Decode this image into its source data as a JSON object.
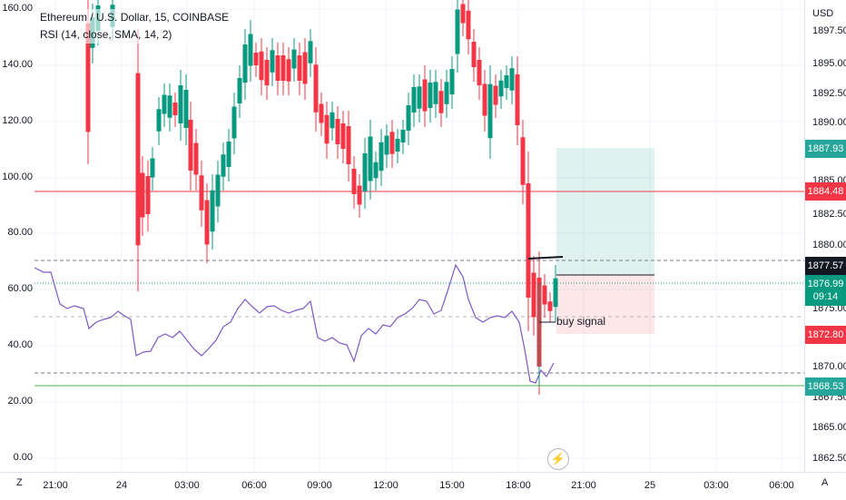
{
  "legend": {
    "symbol_line": "Ethereum / U.S. Dollar, 15, COINBASE",
    "indicator_line": "RSI (14, close, SMA, 14, 2)"
  },
  "left_axis": {
    "ticks": [
      "160.00",
      "140.00",
      "120.00",
      "100.00",
      "80.00",
      "60.00",
      "40.00",
      "20.00",
      "0.00"
    ],
    "values": [
      160,
      140,
      120,
      100,
      80,
      60,
      40,
      20,
      0
    ]
  },
  "right_axis": {
    "currency": "USD",
    "ticks": [
      "1897.50",
      "1895.00",
      "1892.50",
      "1890.00",
      "1885.00",
      "1882.50",
      "1880.00",
      "1875.00",
      "1870.00",
      "1867.50",
      "1865.00",
      "1862.50"
    ]
  },
  "price_tags": {
    "target": {
      "price": "1887.93",
      "color": "#26a69a"
    },
    "resistance": {
      "price": "1884.48",
      "color": "#f23645"
    },
    "entry": {
      "price": "1877.57",
      "color": "#131722"
    },
    "current": {
      "price": "1876.99",
      "countdown": "09:14",
      "color": "#089981"
    },
    "stop": {
      "price": "1872.80",
      "color": "#f23645"
    },
    "support": {
      "price": "1868.53",
      "color": "#26a69a"
    }
  },
  "x_axis": {
    "ticks": [
      "21:00",
      "24",
      "03:00",
      "06:00",
      "09:00",
      "12:00",
      "15:00",
      "18:00",
      "21:00",
      "25",
      "03:00",
      "06:00"
    ]
  },
  "corner_left": "Z",
  "corner_right": "A",
  "annotation": {
    "buy_signal": "buy signal"
  },
  "colors": {
    "up": "#089981",
    "down": "#f23645",
    "rsi": "#7e57c2",
    "target_zone": "#26a69a",
    "stop_zone": "#f23645"
  },
  "event_icon": "lightning-bolt-icon"
}
